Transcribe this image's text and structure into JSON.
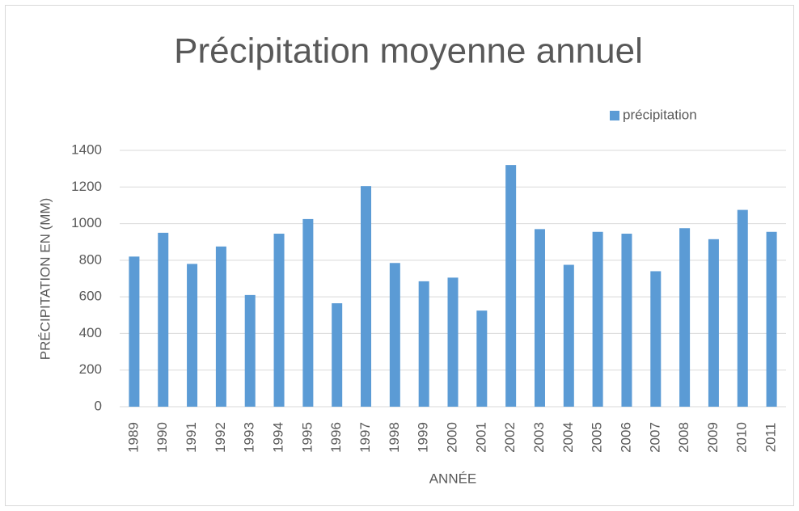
{
  "chart_data": {
    "type": "bar",
    "title": "Précipitation moyenne annuel",
    "x_label": "ANNÉE",
    "y_label": "PRÉCIPITATION EN (MM)",
    "categories": [
      "1989",
      "1990",
      "1991",
      "1992",
      "1993",
      "1994",
      "1995",
      "1996",
      "1997",
      "1998",
      "1999",
      "2000",
      "2001",
      "2002",
      "2003",
      "2004",
      "2005",
      "2006",
      "2007",
      "2008",
      "2009",
      "2010",
      "2011"
    ],
    "series": [
      {
        "name": "précipitation",
        "color": "#5b9bd5",
        "values": [
          820,
          950,
          780,
          875,
          610,
          945,
          1025,
          565,
          1205,
          785,
          685,
          705,
          525,
          1320,
          970,
          775,
          955,
          945,
          740,
          975,
          915,
          1075,
          955
        ]
      }
    ],
    "ylim": [
      0,
      1400
    ],
    "yticks": [
      0,
      200,
      400,
      600,
      800,
      1000,
      1200,
      1400
    ],
    "grid": true,
    "legend": "top-right"
  }
}
